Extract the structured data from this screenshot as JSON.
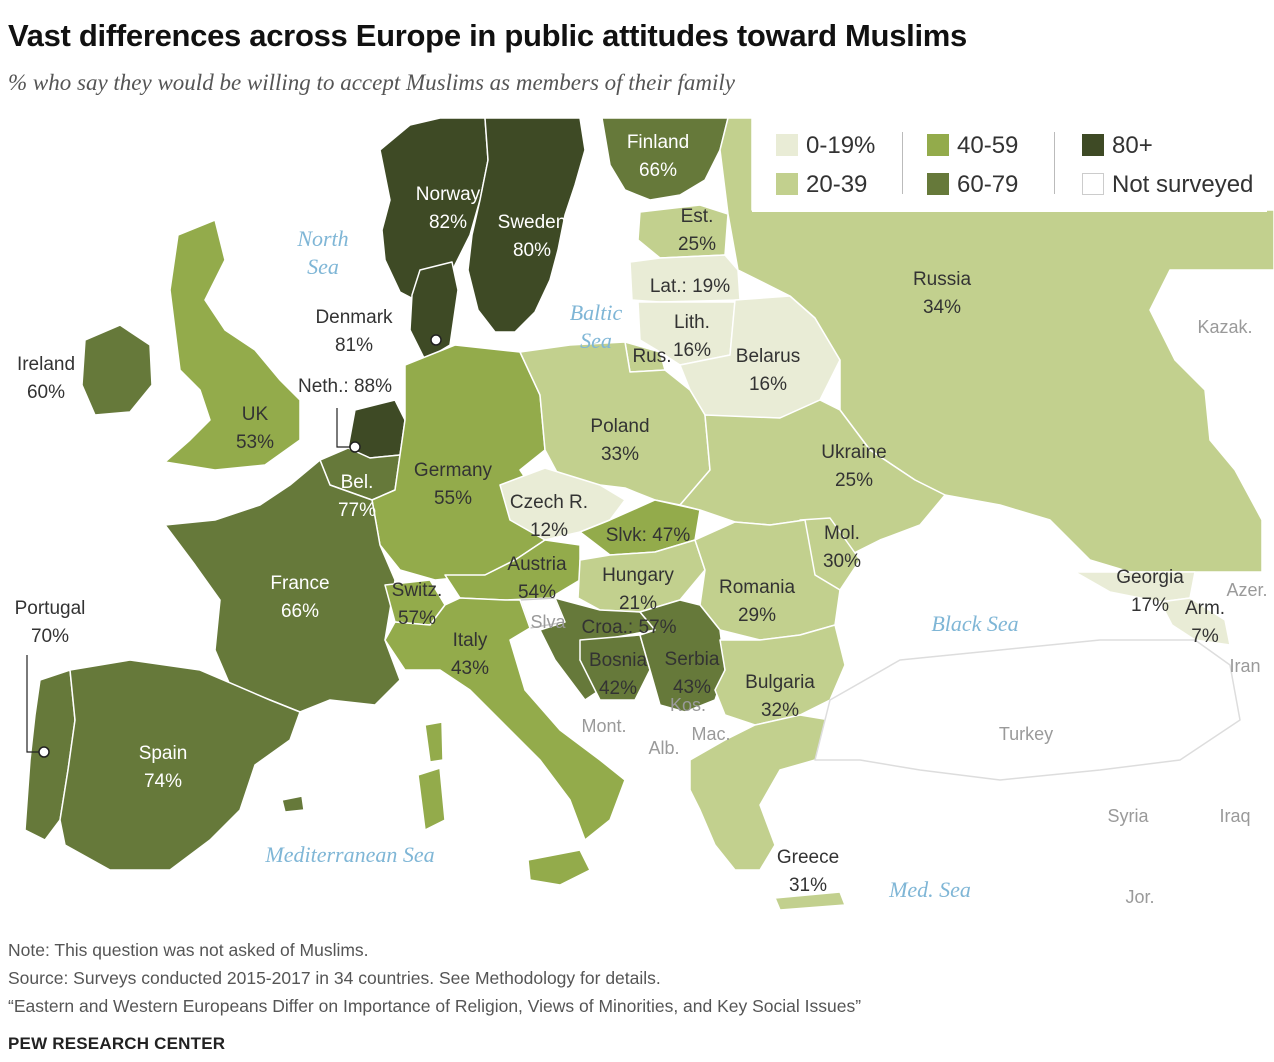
{
  "title": "Vast differences across Europe in public attitudes toward Muslims",
  "subtitle": "% who say they would be willing to accept Muslims as members of their family",
  "colors": {
    "c0_19": "#e9ecd6",
    "c20_39": "#c2d08e",
    "c40_59": "#93ab4b",
    "c60_79": "#66793a",
    "c80": "#3e4a25",
    "not_surveyed": "#ffffff",
    "border": "#ffffff",
    "sea_label": "#7fb6d6",
    "label_light": "#ffffff",
    "label_dark": "#333333"
  },
  "legend": [
    {
      "label": "0-19%",
      "color": "#e9ecd6"
    },
    {
      "label": "20-39",
      "color": "#c2d08e"
    },
    {
      "label": "40-59",
      "color": "#93ab4b"
    },
    {
      "label": "60-79",
      "color": "#66793a"
    },
    {
      "label": "80+",
      "color": "#3e4a25"
    },
    {
      "label": "Not surveyed",
      "color": "#ffffff"
    }
  ],
  "countries": [
    {
      "name": "Finland",
      "value": "66%"
    },
    {
      "name": "Norway",
      "value": "82%"
    },
    {
      "name": "Sweden",
      "value": "80%"
    },
    {
      "name": "Est.",
      "value": "25%"
    },
    {
      "name": "Lat.:",
      "value": "19%"
    },
    {
      "name": "Lith.",
      "value": "16%"
    },
    {
      "name": "Rus.",
      "value": ""
    },
    {
      "name": "Russia",
      "value": "34%"
    },
    {
      "name": "Denmark",
      "value": "81%"
    },
    {
      "name": "Ireland",
      "value": "60%"
    },
    {
      "name": "UK",
      "value": "53%"
    },
    {
      "name": "Neth.:",
      "value": "88%"
    },
    {
      "name": "Belarus",
      "value": "16%"
    },
    {
      "name": "Poland",
      "value": "33%"
    },
    {
      "name": "Germany",
      "value": "55%"
    },
    {
      "name": "Bel.",
      "value": "77%"
    },
    {
      "name": "Ukraine",
      "value": "25%"
    },
    {
      "name": "Czech R.",
      "value": "12%"
    },
    {
      "name": "Slvk:",
      "value": "47%"
    },
    {
      "name": "Mol.",
      "value": "30%"
    },
    {
      "name": "France",
      "value": "66%"
    },
    {
      "name": "Austria",
      "value": "54%"
    },
    {
      "name": "Switz.",
      "value": "57%"
    },
    {
      "name": "Hungary",
      "value": "21%"
    },
    {
      "name": "Romania",
      "value": "29%"
    },
    {
      "name": "Georgia",
      "value": "17%"
    },
    {
      "name": "Arm.",
      "value": "7%"
    },
    {
      "name": "Portugal",
      "value": "70%"
    },
    {
      "name": "Croa.:",
      "value": "57%"
    },
    {
      "name": "Italy",
      "value": "43%"
    },
    {
      "name": "Bosnia",
      "value": "42%"
    },
    {
      "name": "Serbia",
      "value": "43%"
    },
    {
      "name": "Bulgaria",
      "value": "32%"
    },
    {
      "name": "Spain",
      "value": "74%"
    },
    {
      "name": "Greece",
      "value": "31%"
    }
  ],
  "not_surveyed_labels": [
    "Kazak.",
    "Azer.",
    "Iran",
    "Turkey",
    "Syria",
    "Iraq",
    "Jor.",
    "Slva",
    "Mont.",
    "Kos.",
    "Mac.",
    "Alb."
  ],
  "seas": [
    "North Sea",
    "Baltic Sea",
    "Black Sea",
    "Mediterranean Sea",
    "Med. Sea"
  ],
  "notes": {
    "note": "Note: This question was not asked of Muslims.",
    "source": "Source: Surveys conducted 2015-2017 in 34 countries. See Methodology for details.",
    "report": "“Eastern and Western Europeans Differ on Importance of Religion, Views of Minorities, and Key Social Issues”",
    "brand": "PEW RESEARCH CENTER"
  }
}
